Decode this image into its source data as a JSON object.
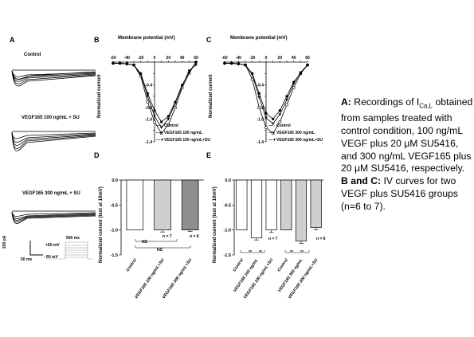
{
  "panel_A": {
    "label": "A",
    "traces": [
      {
        "label": "Control"
      },
      {
        "label": "VEGF165 100 ng/mL + SU"
      },
      {
        "label": "VEGF165 300 ng/mL + SU"
      }
    ],
    "scalebar": {
      "current": "200 pA",
      "time": "50 ms"
    },
    "protocol": {
      "duration": "500 ms",
      "top": "+60 mV",
      "bottom": "- 60 mV"
    }
  },
  "panel_B": {
    "label": "B",
    "title": "Membrane potential (mV)",
    "ylabel": "Normalized current",
    "legend": [
      "Control",
      "VEGF165 100 ng/mL",
      "VEGF165 100 ng/mL+SU"
    ]
  },
  "panel_C": {
    "label": "C",
    "title": "Membrane potential (mV)",
    "ylabel": "Normalized current",
    "legend": [
      "Control",
      "VEGF165 300 ng/mL",
      "VEGF165 300 ng/mL+SU"
    ]
  },
  "panel_D": {
    "label": "D",
    "ylabel": "Normalized current (test at 10mV)",
    "annotations": {
      "n1": "n = 7",
      "n2": "n = 6",
      "ns1": "NS",
      "ns2": "NS"
    }
  },
  "panel_E": {
    "label": "E",
    "ylabel": "Normalized current (test at 10mV)",
    "annotations": {
      "n1": "n = 7",
      "n2": "n = 6",
      "sig": "**"
    }
  },
  "caption": {
    "a_label": "A:",
    "a_text1": "Recordings of I",
    "a_sub": "Ca,L",
    "a_text2": "obtained from samples treated with control condition, 100 ng/mL VEGF plus 20 μM SU5416, and 300 ng/mL VEGF165 plus 20 μM SU5416, respectively.",
    "bc_label": "B and C:",
    "bc_text": "IV curves for two VEGF plus SU5416 groups (n=6 to 7)."
  },
  "chart_data": [
    {
      "type": "line",
      "panel": "B",
      "title": "Membrane potential (mV)",
      "ylabel": "Normalized current",
      "xlim": [
        -60,
        60
      ],
      "ylim": [
        -1.4,
        0
      ],
      "xticks": [
        -60,
        -50,
        -40,
        -30,
        -20,
        -10,
        0,
        10,
        20,
        30,
        40,
        50,
        60
      ],
      "yticks": [
        -0.2,
        -0.4,
        -0.6,
        -0.8,
        -1.0,
        -1.2,
        -1.4
      ],
      "ytick_labels": [
        "",
        "-0.4",
        "",
        "-0.8",
        "-1.0",
        "",
        "-1.4"
      ],
      "x": [
        -60,
        -50,
        -40,
        -30,
        -20,
        -10,
        0,
        10,
        20,
        30,
        40,
        50,
        60
      ],
      "series": [
        {
          "name": "Control",
          "values": [
            -0.02,
            -0.02,
            -0.03,
            -0.05,
            -0.25,
            -0.7,
            -1.05,
            -1.25,
            -1.1,
            -0.8,
            -0.45,
            -0.2,
            0.0
          ]
        },
        {
          "name": "VEGF165 100 ng/mL",
          "values": [
            -0.02,
            -0.02,
            -0.03,
            -0.05,
            -0.2,
            -0.55,
            -0.85,
            -1.05,
            -0.95,
            -0.7,
            -0.4,
            -0.18,
            0.0
          ]
        },
        {
          "name": "VEGF165 100 ng/mL+SU",
          "values": [
            -0.02,
            -0.02,
            -0.03,
            -0.05,
            -0.22,
            -0.6,
            -0.95,
            -1.15,
            -1.0,
            -0.72,
            -0.42,
            -0.15,
            -0.05
          ]
        }
      ]
    },
    {
      "type": "line",
      "panel": "C",
      "title": "Membrane potential (mV)",
      "ylabel": "Normalized current",
      "xlim": [
        -60,
        60
      ],
      "ylim": [
        -1.4,
        0
      ],
      "xticks": [
        -60,
        -50,
        -40,
        -30,
        -20,
        -10,
        0,
        10,
        20,
        30,
        40,
        50,
        60
      ],
      "yticks": [
        -0.2,
        -0.4,
        -0.6,
        -0.8,
        -1.0,
        -1.2,
        -1.4
      ],
      "ytick_labels": [
        "",
        "-0.4",
        "",
        "-0.8",
        "-1.0",
        "",
        "-1.4"
      ],
      "x": [
        -60,
        -50,
        -40,
        -30,
        -20,
        -10,
        0,
        10,
        20,
        30,
        40,
        50,
        60
      ],
      "series": [
        {
          "name": "Control",
          "values": [
            -0.02,
            -0.02,
            -0.03,
            -0.05,
            -0.3,
            -0.8,
            -1.15,
            -1.25,
            -1.05,
            -0.75,
            -0.45,
            -0.2,
            -0.05
          ]
        },
        {
          "name": "VEGF165 300 ng/mL",
          "values": [
            -0.02,
            -0.02,
            -0.03,
            -0.05,
            -0.2,
            -0.55,
            -0.9,
            -1.0,
            -0.85,
            -0.6,
            -0.35,
            -0.2,
            -0.05
          ]
        },
        {
          "name": "VEGF165 300 ng/mL+SU",
          "values": [
            -0.02,
            -0.02,
            -0.03,
            -0.05,
            -0.22,
            -0.62,
            -0.98,
            -1.08,
            -0.92,
            -0.66,
            -0.38,
            -0.18,
            -0.05
          ]
        }
      ]
    },
    {
      "type": "bar",
      "panel": "D",
      "ylabel": "Normalized current (test at 10mV)",
      "ylim": [
        -1.5,
        0
      ],
      "yticks": [
        0,
        -0.5,
        -1.0,
        -1.5
      ],
      "ytick_labels": [
        "0.0",
        "-0.5",
        "-1.0",
        "-1.5"
      ],
      "categories": [
        "Control",
        "VEGF165 100 ng/mL+SU",
        "VEGF165 300 ng/mL+SU"
      ],
      "values": [
        -1.0,
        -1.0,
        -1.0
      ],
      "errors": [
        0.0,
        0.04,
        0.03
      ],
      "colors": [
        "#ffffff",
        "#cfcfcf",
        "#8f8f8f"
      ]
    },
    {
      "type": "bar",
      "panel": "E",
      "ylabel": "Normalized current (test at 10mV)",
      "ylim": [
        -1.5,
        0
      ],
      "yticks": [
        0,
        -0.5,
        -1.0,
        -1.5
      ],
      "ytick_labels": [
        "0.0",
        "-0.5",
        "-1.0",
        "-1.5"
      ],
      "categories": [
        "Control",
        "VEGF165 100 ng/mL",
        "VEGF165 100 ng/mL+SU",
        "Control",
        "VEGF165 300 ng/mL",
        "VEGF165 300 ng/mL+SU"
      ],
      "values": [
        -1.0,
        -1.16,
        -1.0,
        -1.0,
        -1.22,
        -0.95
      ],
      "errors": [
        0.0,
        0.04,
        0.05,
        0.0,
        0.05,
        0.05
      ],
      "colors": [
        "#ffffff",
        "#ffffff",
        "#ffffff",
        "#cfcfcf",
        "#cfcfcf",
        "#cfcfcf"
      ]
    }
  ]
}
